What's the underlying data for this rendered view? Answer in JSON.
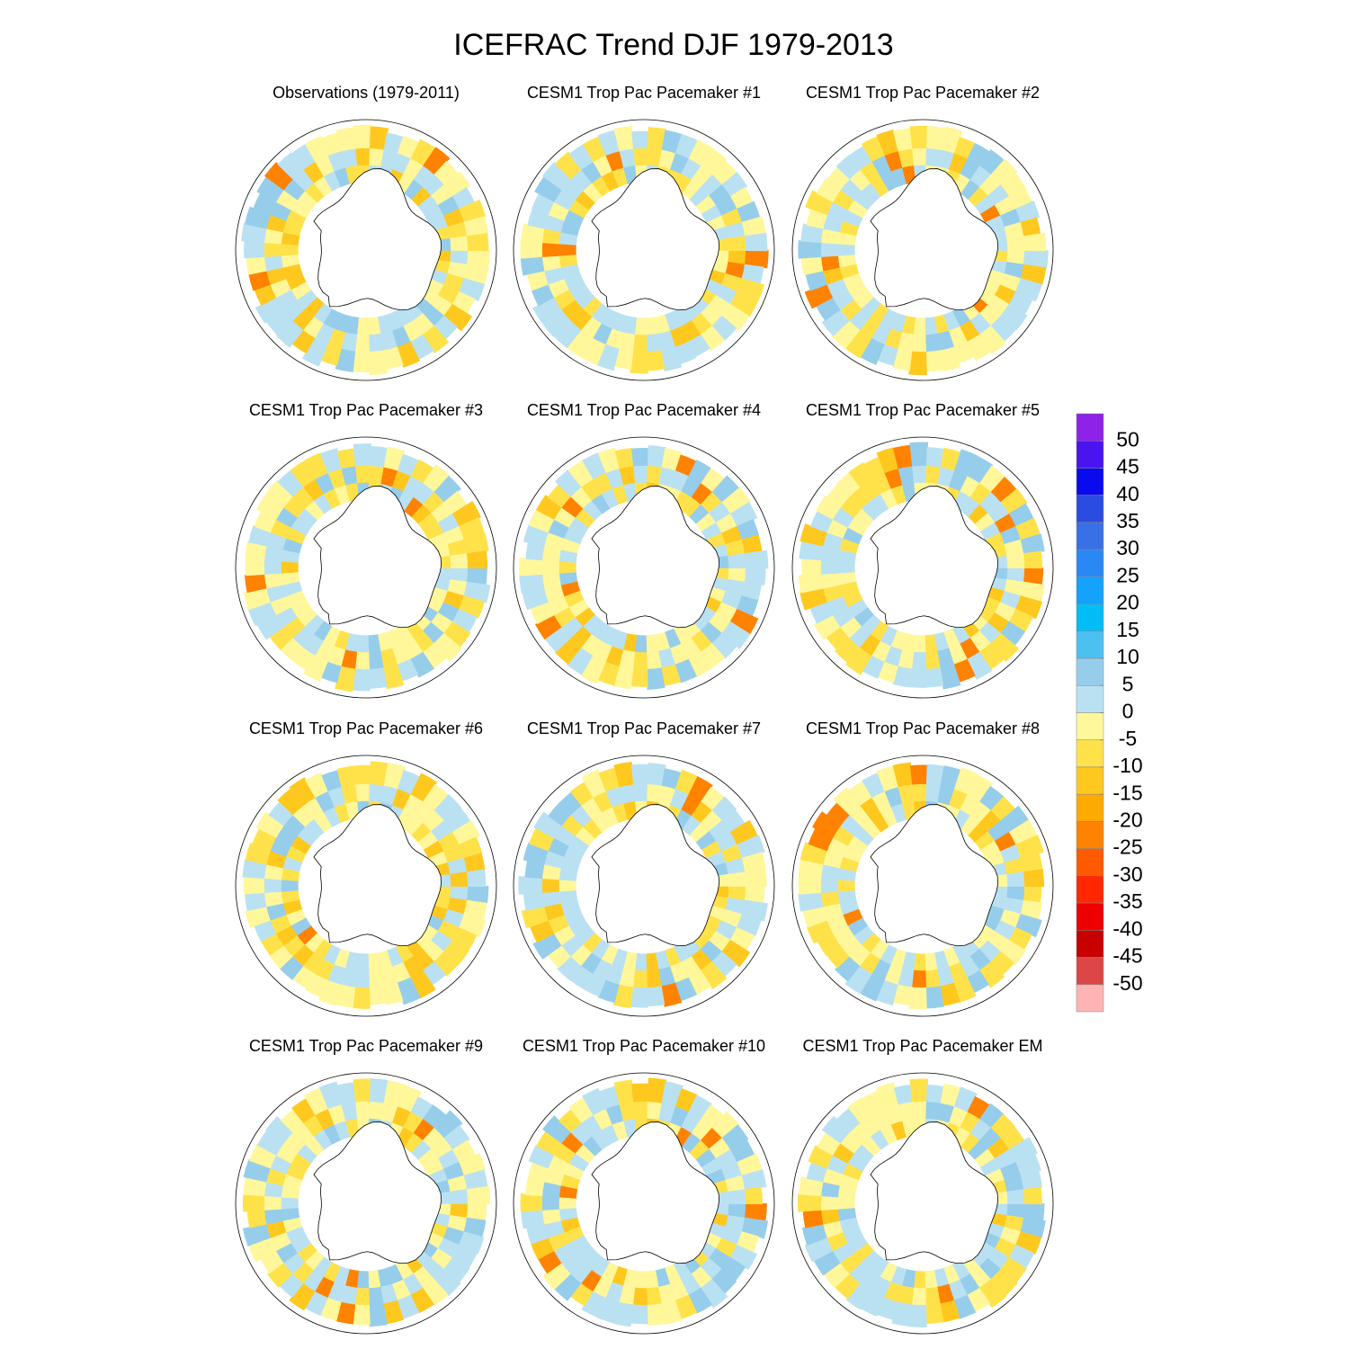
{
  "title": "ICEFRAC Trend DJF 1979-2013",
  "panels": [
    {
      "title": "Observations (1979-2011)"
    },
    {
      "title": "CESM1 Trop Pac Pacemaker #1"
    },
    {
      "title": "CESM1 Trop Pac Pacemaker #2"
    },
    {
      "title": "CESM1 Trop Pac Pacemaker #3"
    },
    {
      "title": "CESM1 Trop Pac Pacemaker #4"
    },
    {
      "title": "CESM1 Trop Pac Pacemaker #5"
    },
    {
      "title": "CESM1 Trop Pac Pacemaker #6"
    },
    {
      "title": "CESM1 Trop Pac Pacemaker #7"
    },
    {
      "title": "CESM1 Trop Pac Pacemaker #8"
    },
    {
      "title": "CESM1 Trop Pac Pacemaker #9"
    },
    {
      "title": "CESM1 Trop Pac Pacemaker #10"
    },
    {
      "title": "CESM1 Trop Pac Pacemaker EM"
    }
  ],
  "colorbar": {
    "levels": [
      50,
      45,
      40,
      35,
      30,
      25,
      20,
      15,
      10,
      5,
      0,
      -5,
      -10,
      -15,
      -20,
      -25,
      -30,
      -35,
      -40,
      -45,
      -50
    ],
    "colors": [
      "#8f22e8",
      "#4a14f0",
      "#0a0af0",
      "#2a4ce0",
      "#3a70e6",
      "#2a88f5",
      "#14a2ff",
      "#00bef5",
      "#4cc0f0",
      "#96cdeb",
      "#bae1f2",
      "#fff79a",
      "#ffe24a",
      "#ffc81e",
      "#ffaa00",
      "#ff8200",
      "#ff5a00",
      "#ff2800",
      "#ee0000",
      "#c80000",
      "#dc4646",
      "#ffb4b4"
    ]
  }
}
